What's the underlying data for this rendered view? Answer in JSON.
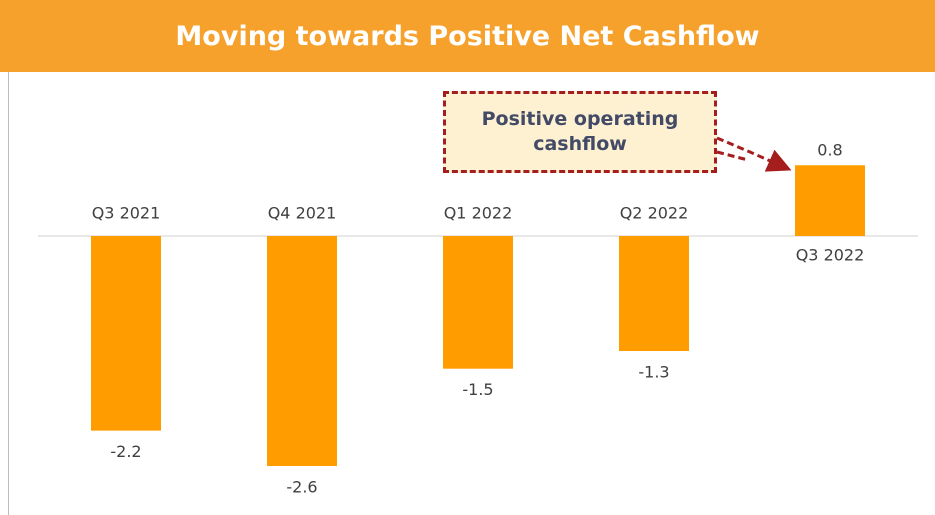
{
  "chart_data": {
    "type": "bar",
    "title": "Moving towards Positive Net Cashflow",
    "categories": [
      "Q3 2021",
      "Q4 2021",
      "Q1 2022",
      "Q2 2022",
      "Q3 2022"
    ],
    "values": [
      -2.2,
      -2.6,
      -1.5,
      -1.3,
      0.8
    ],
    "color": "#ff9d00",
    "annotation": "Positive operating cashflow"
  }
}
